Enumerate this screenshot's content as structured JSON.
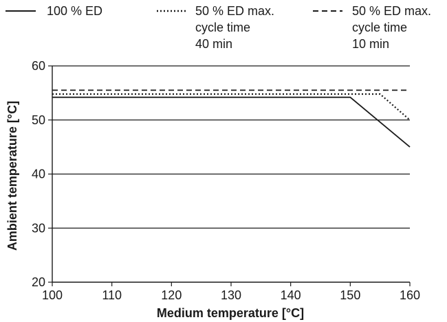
{
  "chart_data": {
    "type": "line",
    "xlabel": "Medium temperature [°C]",
    "ylabel": "Ambient temperature [°C]",
    "xlim": [
      100,
      160
    ],
    "ylim": [
      20,
      60
    ],
    "xticks": [
      "100",
      "110",
      "120",
      "130",
      "140",
      "150",
      "160"
    ],
    "yticks": [
      "20",
      "30",
      "40",
      "50",
      "60"
    ],
    "grid": "horizontal",
    "legend_position": "top",
    "series": [
      {
        "name_lines": [
          "100 % ED"
        ],
        "style": "solid",
        "points": [
          [
            100,
            54.2
          ],
          [
            150,
            54.2
          ],
          [
            160,
            45
          ]
        ]
      },
      {
        "name_lines": [
          "50 % ED max.",
          "cycle time",
          "40 min"
        ],
        "style": "dotted",
        "points": [
          [
            100,
            54.8
          ],
          [
            155,
            54.8
          ],
          [
            160,
            50
          ]
        ]
      },
      {
        "name_lines": [
          "50 % ED max.",
          "cycle time",
          "10 min"
        ],
        "style": "dashed",
        "points": [
          [
            100,
            55.5
          ],
          [
            160,
            55.5
          ]
        ]
      }
    ]
  }
}
